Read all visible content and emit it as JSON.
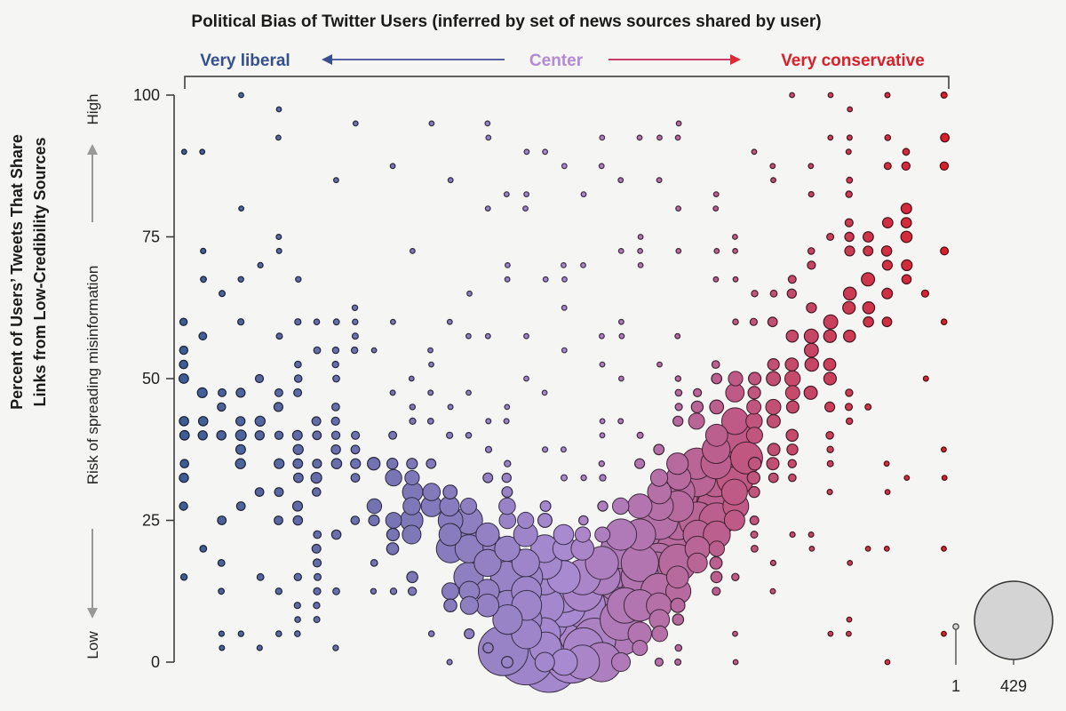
{
  "chart_data": {
    "type": "scatter",
    "title": "Political Bias of Twitter Users (inferred by set of news sources shared by user)",
    "bias_labels": {
      "left": "Very liberal",
      "center": "Center",
      "right": "Very conservative"
    },
    "ylabel_line1": "Percent of Users’ Tweets That Share",
    "ylabel_line2": "Links from Low-Credibility Sources",
    "risk_axis": {
      "low": "Low",
      "middle": "Risk of spreading misinformation",
      "high": "High"
    },
    "ylim": [
      0,
      100
    ],
    "y_ticks": [
      "0",
      "25",
      "50",
      "75",
      "100"
    ],
    "x_encoding": "political bias, very liberal to very conservative",
    "size_encoding": "number of users",
    "size_legend": {
      "min": 1,
      "max": 429,
      "min_label": "1",
      "max_label": "429"
    },
    "colors": {
      "liberal": "#3f5c94",
      "center": "#a88ad0",
      "conservative": "#d8202a"
    },
    "grid": false,
    "note": "Bubble diagram: dense band of large bubbles near 0–25% for center users, rising to 50%+ for conservative users; sparse small dots elsewhere."
  }
}
